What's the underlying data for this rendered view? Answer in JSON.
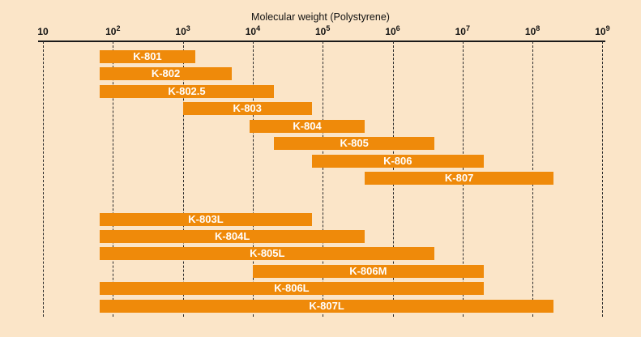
{
  "chart_data": {
    "type": "bar",
    "variant": "horizontal-range",
    "title": "Molecular weight (Polystyrene)",
    "xlabel": "Molecular weight (Polystyrene)",
    "x_scale": "log10",
    "xlim": [
      10,
      1000000000
    ],
    "x_ticks": [
      10,
      100,
      1000,
      10000,
      100000,
      1000000,
      10000000,
      100000000,
      1000000000
    ],
    "x_tick_labels": [
      "10",
      "10^2",
      "10^3",
      "10^4",
      "10^5",
      "10^6",
      "10^7",
      "10^8",
      "10^9"
    ],
    "grid": "vertical-dashed",
    "legend": "none",
    "bars": [
      {
        "label": "K-801",
        "group": 1,
        "range": [
          65,
          1500
        ]
      },
      {
        "label": "K-802",
        "group": 1,
        "range": [
          65,
          5000
        ]
      },
      {
        "label": "K-802.5",
        "group": 1,
        "range": [
          65,
          20000
        ]
      },
      {
        "label": "K-803",
        "group": 1,
        "range": [
          1000,
          70000
        ]
      },
      {
        "label": "K-804",
        "group": 1,
        "range": [
          9000,
          400000
        ]
      },
      {
        "label": "K-805",
        "group": 1,
        "range": [
          20000,
          4000000
        ]
      },
      {
        "label": "K-806",
        "group": 1,
        "range": [
          70000,
          20000000
        ]
      },
      {
        "label": "K-807",
        "group": 1,
        "range": [
          400000,
          200000000
        ]
      },
      {
        "label": "K-803L",
        "group": 2,
        "range": [
          65,
          70000
        ]
      },
      {
        "label": "K-804L",
        "group": 2,
        "range": [
          65,
          400000
        ]
      },
      {
        "label": "K-805L",
        "group": 2,
        "range": [
          65,
          4000000
        ]
      },
      {
        "label": "K-806M",
        "group": 2,
        "range": [
          10000,
          20000000
        ]
      },
      {
        "label": "K-806L",
        "group": 2,
        "range": [
          65,
          20000000
        ]
      },
      {
        "label": "K-807L",
        "group": 2,
        "range": [
          65,
          200000000
        ]
      }
    ],
    "colors": {
      "background": "#fbe5c8",
      "bar": "#ef8a0a",
      "bar_label": "#ffffff",
      "axis_text": "#111111",
      "gridline": "#2b2b2b"
    }
  }
}
